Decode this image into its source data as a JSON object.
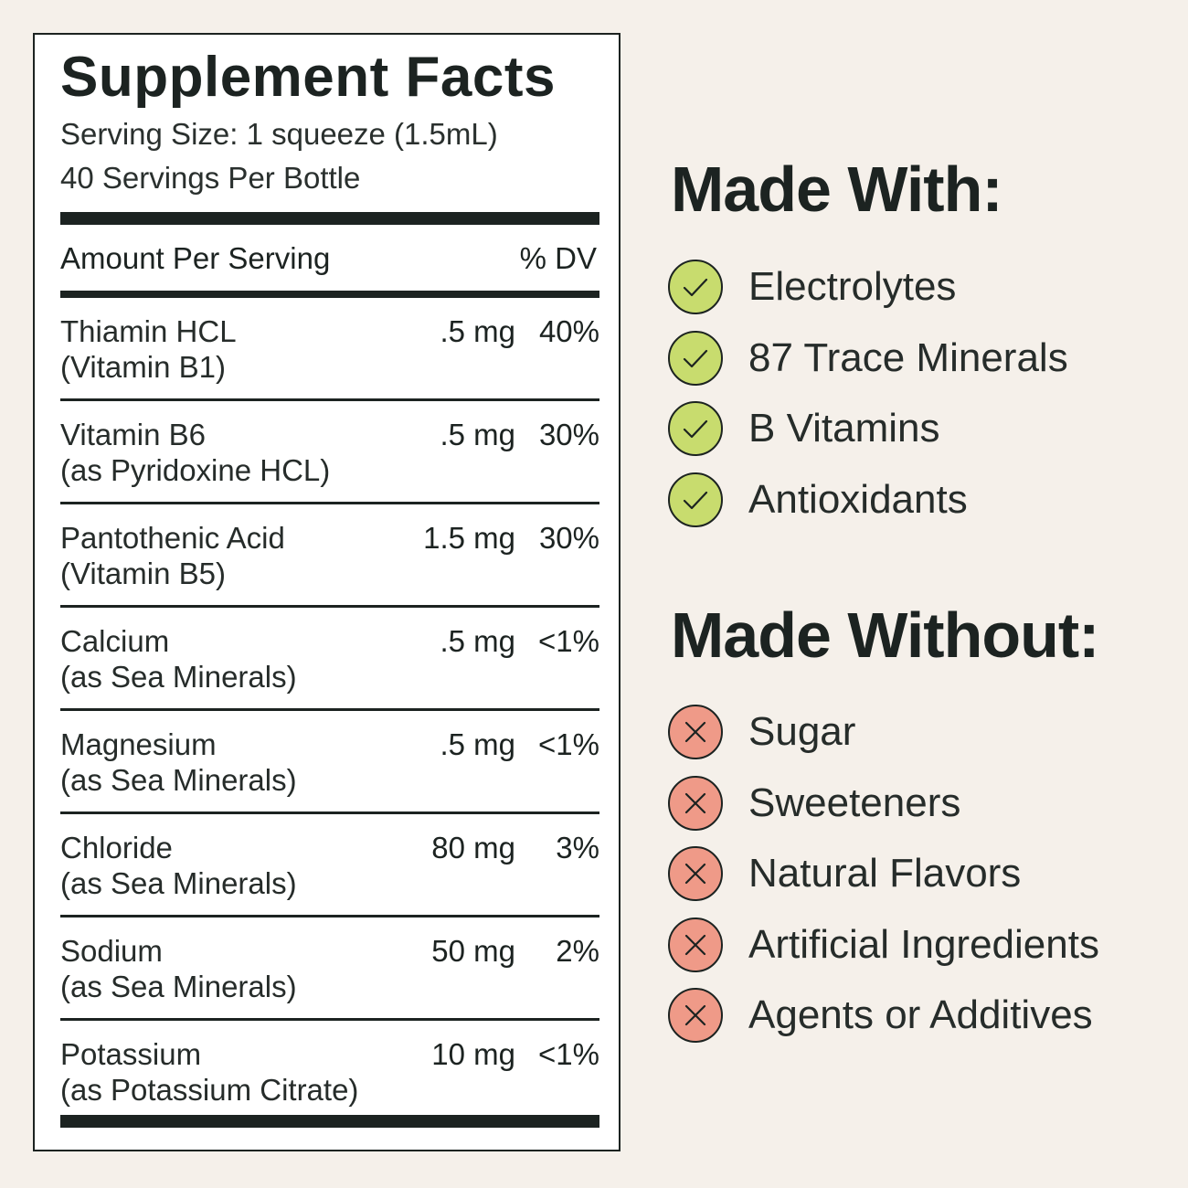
{
  "facts": {
    "title": "Supplement Facts",
    "serving_size": "Serving Size: 1 squeeze (1.5mL)",
    "servings": "40 Servings Per Bottle",
    "header_left": "Amount Per Serving",
    "header_right": "% DV",
    "rows": [
      {
        "name": "Thiamin HCL",
        "source": "(Vitamin B1)",
        "amount": ".5 mg",
        "dv": "40%"
      },
      {
        "name": "Vitamin B6",
        "source": "(as Pyridoxine HCL)",
        "amount": ".5 mg",
        "dv": "30%"
      },
      {
        "name": "Pantothenic Acid",
        "source": "(Vitamin B5)",
        "amount": "1.5 mg",
        "dv": "30%"
      },
      {
        "name": "Calcium",
        "source": "(as Sea Minerals)",
        "amount": ".5 mg",
        "dv": "<1%"
      },
      {
        "name": "Magnesium",
        "source": "(as Sea Minerals)",
        "amount": ".5 mg",
        "dv": "<1%"
      },
      {
        "name": "Chloride",
        "source": "(as Sea Minerals)",
        "amount": "80 mg",
        "dv": "3%"
      },
      {
        "name": "Sodium",
        "source": "(as Sea Minerals)",
        "amount": "50 mg",
        "dv": "2%"
      },
      {
        "name": "Potassium",
        "source": "(as Potassium Citrate)",
        "amount": "10 mg",
        "dv": "<1%"
      }
    ]
  },
  "made_with": {
    "title": "Made With:",
    "icon": "check-icon",
    "color": "#c8dc6e",
    "items": [
      "Electrolytes",
      "87 Trace Minerals",
      "B Vitamins",
      "Antioxidants"
    ]
  },
  "made_without": {
    "title": "Made Without:",
    "icon": "x-icon",
    "color": "#ef9a88",
    "items": [
      "Sugar",
      "Sweeteners",
      "Natural Flavors",
      "Artificial Ingredients",
      "Agents or Additives"
    ]
  },
  "colors": {
    "background": "#f5f0ea",
    "ink": "#1c2321",
    "panel": "#ffffff"
  }
}
